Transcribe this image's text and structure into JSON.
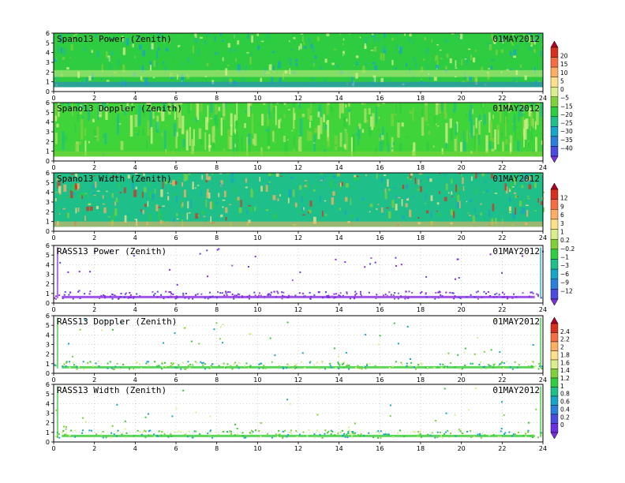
{
  "chart_data": [
    {
      "type": "heatmap",
      "title": "Spano13 Power (Zenith)",
      "date": "01MAY2012",
      "x_range": [
        0,
        24
      ],
      "x_ticks": [
        0,
        2,
        4,
        6,
        8,
        10,
        12,
        14,
        16,
        18,
        20,
        22,
        24
      ],
      "y_range": [
        0,
        6
      ],
      "y_ticks": [
        0,
        1,
        2,
        3,
        4,
        5,
        6
      ],
      "colorbar_group": 0,
      "background": "#2ecc40"
    },
    {
      "type": "heatmap",
      "title": "Spano13 Doppler (Zenith)",
      "date": "01MAY2012",
      "x_range": [
        0,
        24
      ],
      "x_ticks": [
        0,
        2,
        4,
        6,
        8,
        10,
        12,
        14,
        16,
        18,
        20,
        22,
        24
      ],
      "y_range": [
        0,
        6
      ],
      "y_ticks": [
        0,
        1,
        2,
        3,
        4,
        5,
        6
      ],
      "colorbar_group": 0,
      "background": "#3fd43a"
    },
    {
      "type": "heatmap",
      "title": "Spano13 Width (Zenith)",
      "date": "01MAY2012",
      "x_range": [
        0,
        24
      ],
      "x_ticks": [
        0,
        2,
        4,
        6,
        8,
        10,
        12,
        14,
        16,
        18,
        20,
        22,
        24
      ],
      "y_range": [
        0,
        6
      ],
      "y_ticks": [
        0,
        1,
        2,
        3,
        4,
        5,
        6
      ],
      "colorbar_group": 1,
      "background": "#1fbf8a"
    },
    {
      "type": "scatter",
      "title": "RASS13 Power (Zenith)",
      "date": "01MAY2012",
      "x_range": [
        0,
        24
      ],
      "x_ticks": [
        0,
        2,
        4,
        6,
        8,
        10,
        12,
        14,
        16,
        18,
        20,
        22,
        24
      ],
      "y_range": [
        0,
        6
      ],
      "y_ticks": [
        0,
        1,
        2,
        3,
        4,
        5,
        6
      ],
      "colorbar_group": 1,
      "point_color": "#8a2be2"
    },
    {
      "type": "scatter",
      "title": "RASS13 Doppler (Zenith)",
      "date": "01MAY2012",
      "x_range": [
        0,
        24
      ],
      "x_ticks": [
        0,
        2,
        4,
        6,
        8,
        10,
        12,
        14,
        16,
        18,
        20,
        22,
        24
      ],
      "y_range": [
        0,
        6
      ],
      "y_ticks": [
        0,
        1,
        2,
        3,
        4,
        5,
        6
      ],
      "colorbar_group": 2,
      "point_color": "#33cc33"
    },
    {
      "type": "scatter",
      "title": "RASS13 Width (Zenith)",
      "date": "01MAY2012",
      "x_range": [
        0,
        24
      ],
      "x_ticks": [
        0,
        2,
        4,
        6,
        8,
        10,
        12,
        14,
        16,
        18,
        20,
        22,
        24
      ],
      "y_range": [
        0,
        6
      ],
      "y_ticks": [
        0,
        1,
        2,
        3,
        4,
        5,
        6
      ],
      "colorbar_group": 2,
      "point_color": "#33cc33"
    }
  ],
  "colorbars": [
    {
      "labels": [
        "20",
        "15",
        "10",
        "5",
        "0",
        "−5",
        "−15",
        "−20",
        "−25",
        "−30",
        "−35",
        "−40"
      ],
      "colors": [
        "#b40026",
        "#d7301f",
        "#f46d43",
        "#fdae61",
        "#fee08b",
        "#d9ef8b",
        "#7fd13b",
        "#2ecc40",
        "#1fbf8a",
        "#17a6c8",
        "#2c7fdc",
        "#4b4be0",
        "#7a2fe0"
      ]
    },
    {
      "labels": [
        "12",
        "9",
        "6",
        "3",
        "1",
        "0.2",
        "−0.2",
        "−1",
        "−3",
        "−6",
        "−9",
        "−12"
      ],
      "colors": [
        "#b40026",
        "#d7301f",
        "#f46d43",
        "#fdae61",
        "#fee08b",
        "#d9ef8b",
        "#7fd13b",
        "#2ecc40",
        "#1fbf8a",
        "#17a6c8",
        "#2c7fdc",
        "#4b4be0",
        "#7a2fe0"
      ]
    },
    {
      "labels": [
        "2.4",
        "2.2",
        "2",
        "1.8",
        "1.6",
        "1.4",
        "1.2",
        "1",
        "0.8",
        "0.6",
        "0.4",
        "0.2",
        "0"
      ],
      "colors": [
        "#b40026",
        "#d7301f",
        "#f46d43",
        "#fdae61",
        "#fee08b",
        "#d9ef8b",
        "#7fd13b",
        "#2ecc40",
        "#1fbf8a",
        "#17a6c8",
        "#2c7fdc",
        "#4b4be0",
        "#6a2fe0",
        "#7a2fe0"
      ]
    }
  ]
}
